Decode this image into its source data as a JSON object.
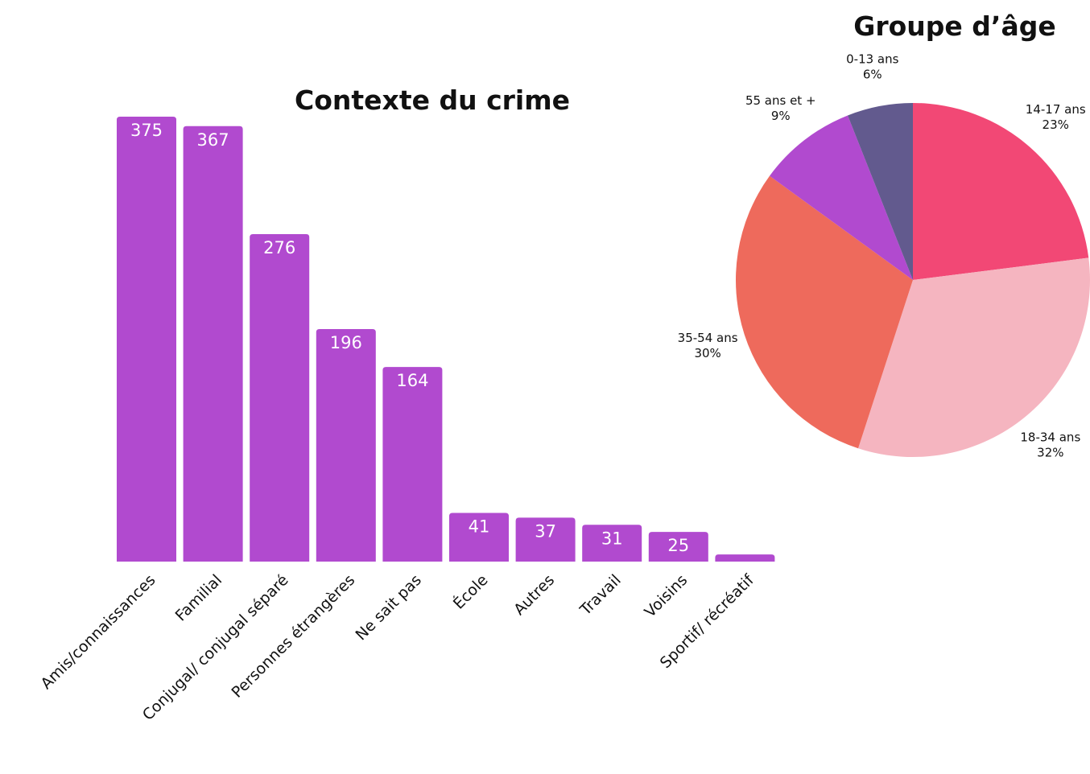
{
  "chart_data": [
    {
      "type": "bar",
      "title": "Contexte du crime",
      "categories": [
        "Amis/connaissances",
        "Familial",
        "Conjugal/ conjugal séparé",
        "Personnes étrangères",
        "Ne sait pas",
        "École",
        "Autres",
        "Travail",
        "Voisins",
        "Sportif/ récréatif"
      ],
      "values": [
        375,
        367,
        276,
        196,
        164,
        41,
        37,
        31,
        25,
        6
      ],
      "value_labels": [
        "375",
        "367",
        "276",
        "196",
        "164",
        "41",
        "37",
        "31",
        "25",
        null
      ],
      "color": "#b14acf"
    },
    {
      "type": "pie",
      "title": "Groupe d’âge",
      "categories": [
        "14-17 ans",
        "18-34 ans",
        "35-54 ans",
        "55 ans et +",
        "0-13 ans"
      ],
      "values": [
        23,
        32,
        30,
        9,
        6
      ],
      "value_labels": [
        "23%",
        "32%",
        "30%",
        "9%",
        "6%"
      ],
      "colors": [
        "#f24875",
        "#f5b5c0",
        "#ee6a5c",
        "#b14acf",
        "#625a8e"
      ]
    }
  ]
}
